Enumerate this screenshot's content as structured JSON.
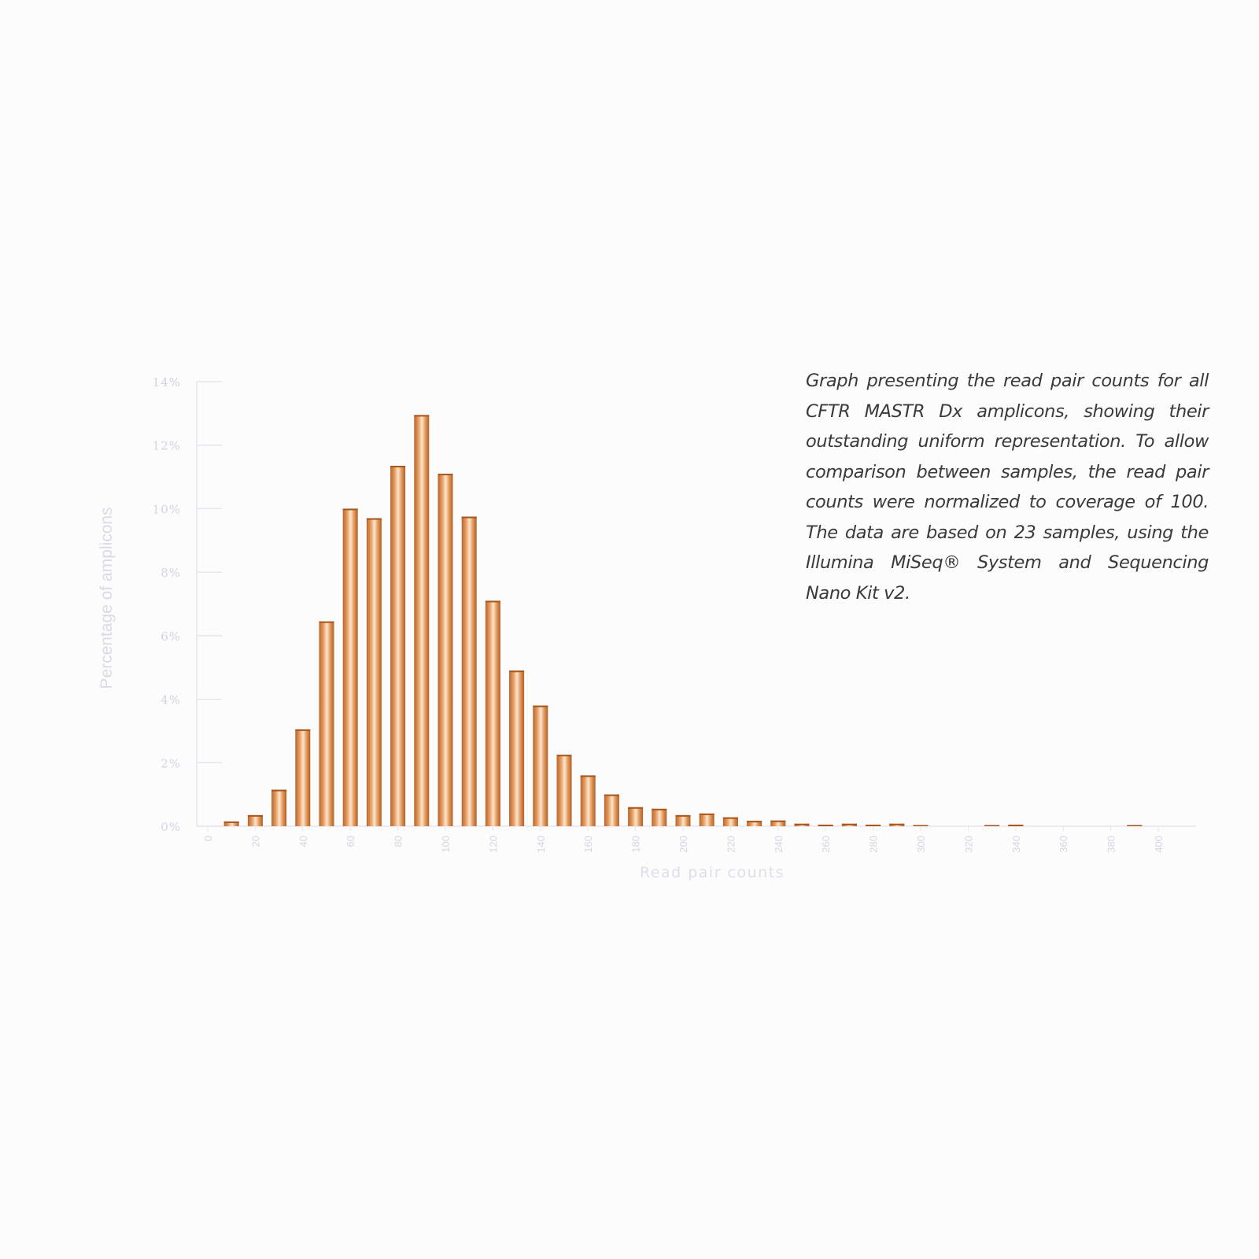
{
  "caption": "Graph presenting the read pair counts for all CFTR MASTR Dx amplicons, showing their outstanding uniform representation. To allow comparison between samples, the read pair counts were normalized to coverage of 100. The data are based on 23 samples, using the Illumina MiSeq® System and Sequencing Nano Kit v2.",
  "chart_data": {
    "type": "bar",
    "title": "",
    "xlabel": "Read pair counts",
    "ylabel": "Percentage of amplicons",
    "ylim": [
      0,
      14
    ],
    "xlim": [
      0,
      410
    ],
    "y_tick_labels": [
      "0%",
      "2%",
      "4%",
      "6%",
      "8%",
      "10%",
      "12%",
      "14%"
    ],
    "y_ticks": [
      0,
      2,
      4,
      6,
      8,
      10,
      12,
      14
    ],
    "x_tick_labels": [
      "0",
      "20",
      "40",
      "60",
      "80",
      "100",
      "120",
      "140",
      "160",
      "180",
      "200",
      "220",
      "240",
      "260",
      "280",
      "300",
      "320",
      "340",
      "360",
      "380",
      "400"
    ],
    "x_ticks": [
      0,
      20,
      40,
      60,
      80,
      100,
      120,
      140,
      160,
      180,
      200,
      220,
      240,
      260,
      280,
      300,
      320,
      340,
      360,
      380,
      400
    ],
    "x": [
      10,
      20,
      30,
      40,
      50,
      60,
      70,
      80,
      90,
      100,
      110,
      120,
      130,
      140,
      150,
      160,
      170,
      180,
      190,
      200,
      210,
      220,
      230,
      240,
      250,
      260,
      270,
      280,
      290,
      300,
      330,
      340,
      390
    ],
    "values": [
      0.15,
      0.35,
      1.15,
      3.05,
      6.45,
      10.0,
      9.7,
      11.35,
      12.95,
      11.1,
      9.75,
      7.1,
      4.9,
      3.8,
      2.25,
      1.6,
      1.0,
      0.6,
      0.55,
      0.35,
      0.4,
      0.28,
      0.17,
      0.18,
      0.08,
      0.05,
      0.08,
      0.05,
      0.08,
      0.03,
      0.03,
      0.05,
      0.03
    ],
    "grid": false,
    "bar_color": "#d9894a"
  }
}
